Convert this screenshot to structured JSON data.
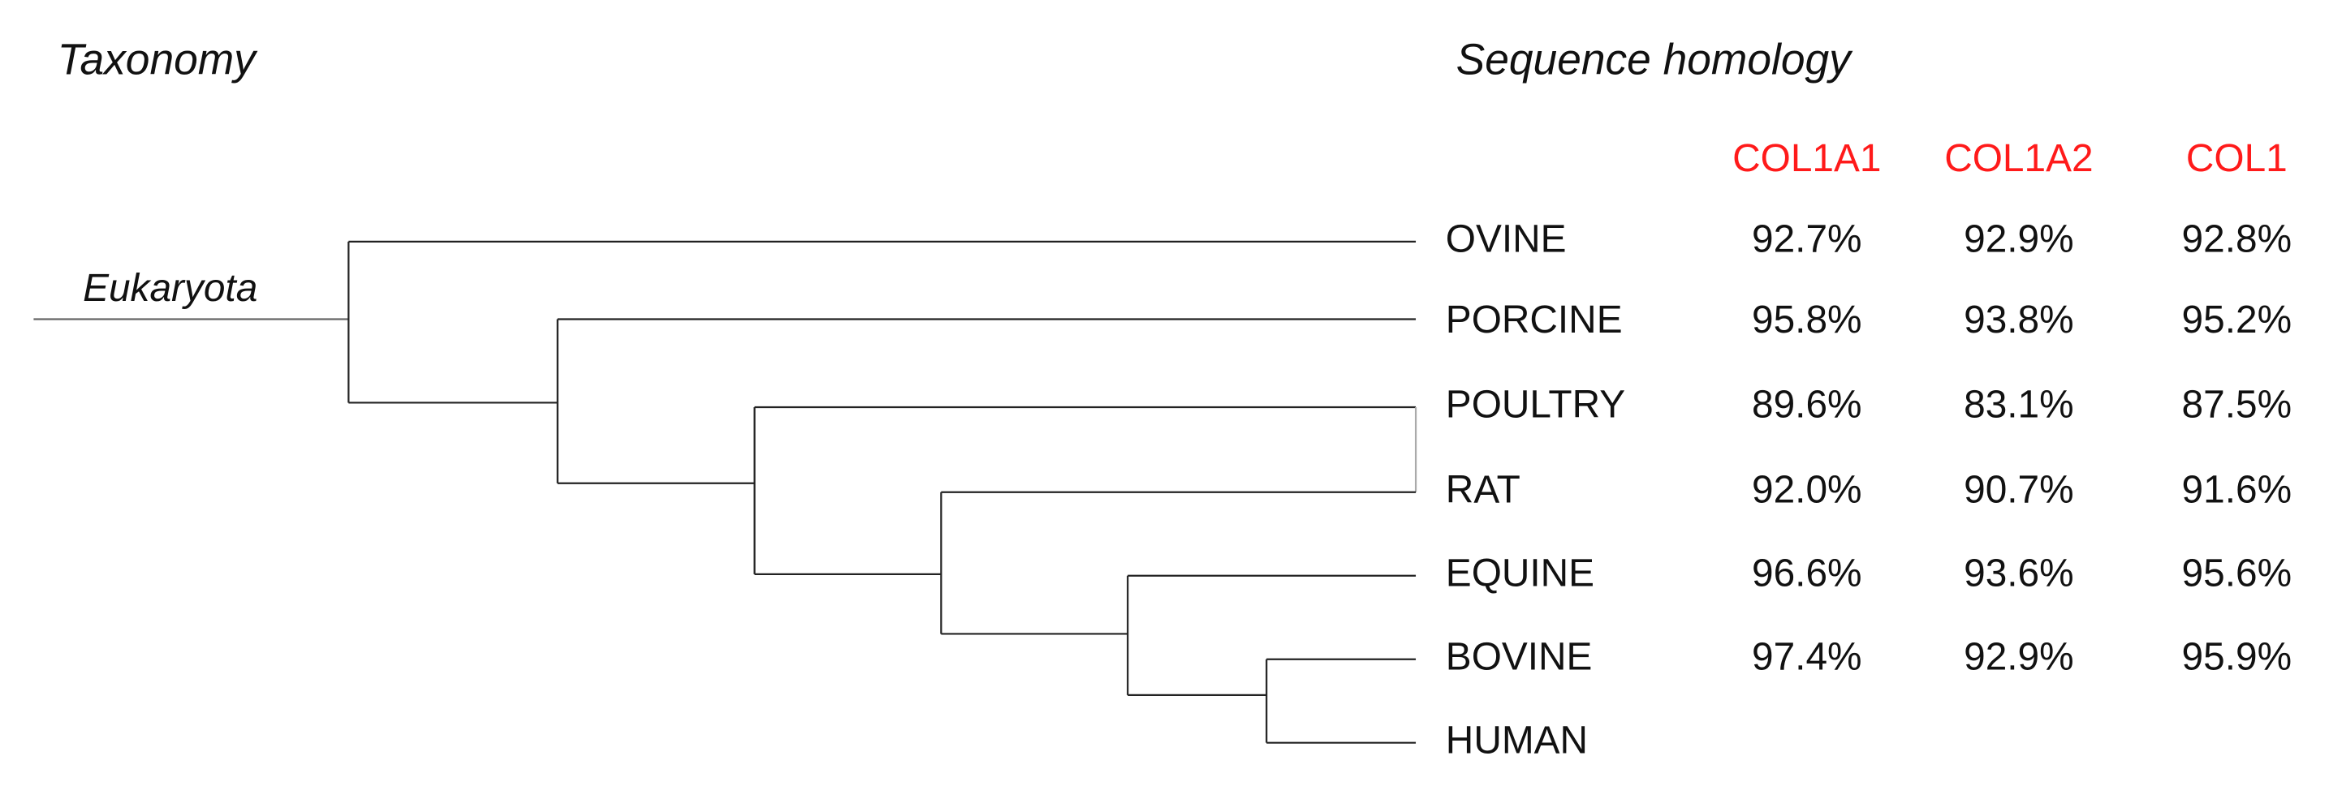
{
  "titles": {
    "taxonomy": "Taxonomy",
    "homology": "Sequence homology"
  },
  "root_label": "Eukaryota",
  "columns": [
    "COL1A1",
    "COL1A2",
    "COL1"
  ],
  "rows": [
    {
      "name": "OVINE",
      "values": [
        "92.7%",
        "92.9%",
        "92.8%"
      ]
    },
    {
      "name": "PORCINE",
      "values": [
        "95.8%",
        "93.8%",
        "95.2%"
      ]
    },
    {
      "name": "POULTRY",
      "values": [
        "89.6%",
        "83.1%",
        "87.5%"
      ]
    },
    {
      "name": "RAT",
      "values": [
        "92.0%",
        "90.7%",
        "91.6%"
      ]
    },
    {
      "name": "EQUINE",
      "values": [
        "96.6%",
        "93.6%",
        "95.6%"
      ]
    },
    {
      "name": "BOVINE",
      "values": [
        "97.4%",
        "92.9%",
        "95.9%"
      ]
    },
    {
      "name": "HUMAN",
      "values": []
    }
  ]
}
